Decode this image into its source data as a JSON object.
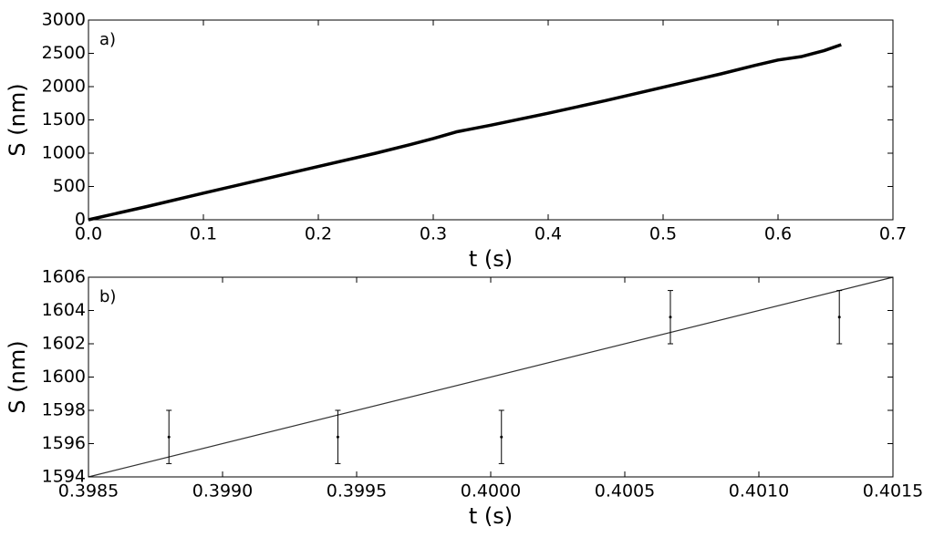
{
  "chart_data": [
    {
      "type": "line",
      "annotation": "a)",
      "x_label": "t (s)",
      "y_label": "S (nm)",
      "x": [
        0,
        0.05,
        0.1,
        0.15,
        0.2,
        0.25,
        0.28,
        0.3,
        0.32,
        0.35,
        0.4,
        0.45,
        0.5,
        0.55,
        0.58,
        0.6,
        0.62,
        0.64,
        0.655
      ],
      "values": [
        0,
        195,
        400,
        600,
        800,
        1000,
        1130,
        1220,
        1320,
        1420,
        1600,
        1790,
        1990,
        2190,
        2320,
        2400,
        2450,
        2540,
        2630
      ],
      "color": "#000000",
      "xlim": [
        0,
        0.7
      ],
      "ylim": [
        0,
        3000
      ],
      "xticks": [
        {
          "value": 0,
          "label": "0.0"
        },
        0.1,
        0.2,
        0.3,
        0.4,
        0.5,
        0.6,
        0.7
      ],
      "yticks": [
        0,
        500,
        1000,
        1500,
        2000,
        2500,
        3000
      ]
    },
    {
      "type": "errorbar",
      "annotation": "b)",
      "x_label": "t (s)",
      "y_label": "S (nm)",
      "x": [
        0.3988,
        0.39943,
        0.40004,
        0.40067,
        0.4013
      ],
      "values": [
        1596.4,
        1596.4,
        1596.4,
        1603.6,
        1603.6
      ],
      "errors": [
        1.6,
        1.6,
        1.6,
        1.6,
        1.6
      ],
      "fit_line": {
        "x": [
          0.3985,
          0.4015
        ],
        "values": [
          1594,
          1606
        ]
      },
      "color": "#000000",
      "xlim": [
        0.3985,
        0.4015
      ],
      "ylim": [
        1594,
        1606
      ],
      "xticks": [
        0.3985,
        {
          "value": 0.399,
          "label": "0.3990"
        },
        0.3995,
        {
          "value": 0.4,
          "label": "0.4000"
        },
        0.4005,
        {
          "value": 0.401,
          "label": "0.4010"
        },
        0.4015
      ],
      "yticks": [
        1594,
        1596,
        1598,
        1600,
        1602,
        1604,
        1606
      ]
    }
  ]
}
